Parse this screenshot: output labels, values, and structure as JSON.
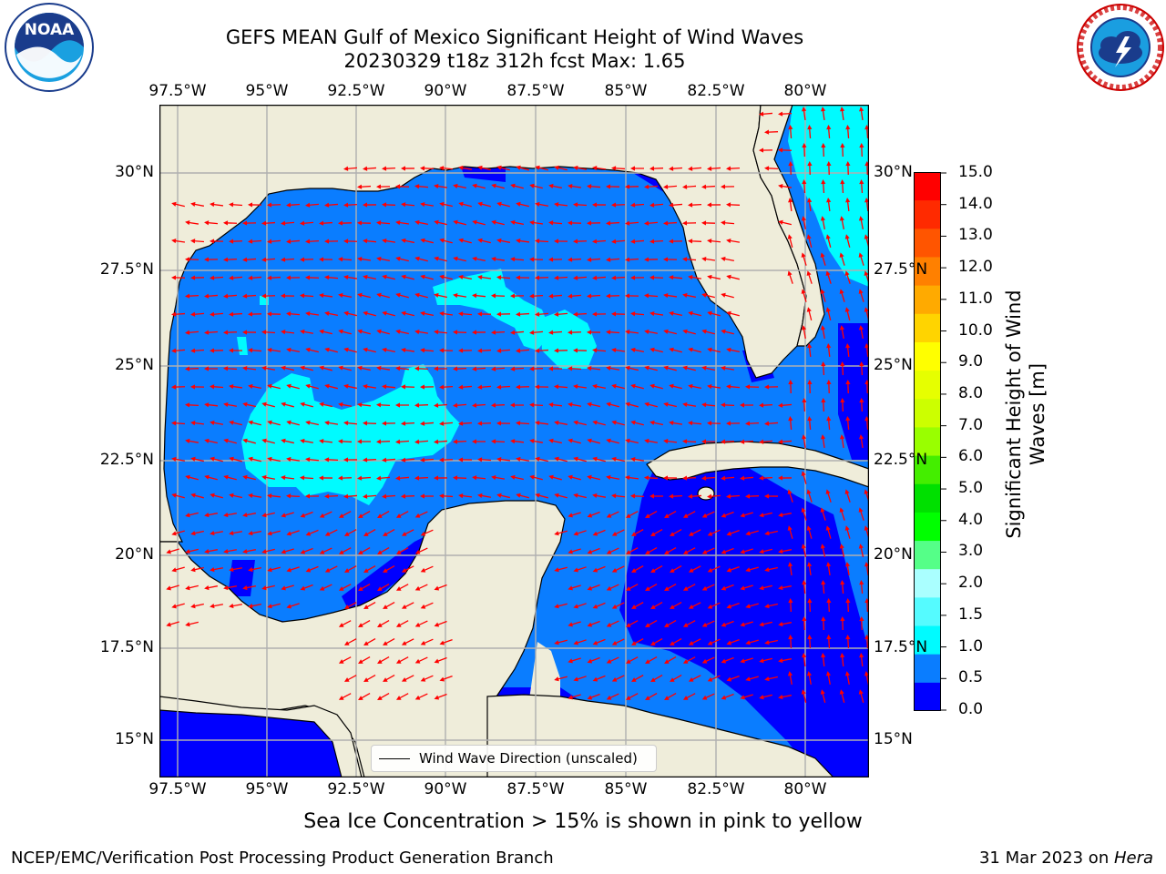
{
  "header": {
    "title": "GEFS MEAN Gulf of Mexico Significant Height of Wind Waves",
    "subtitle": "20230329 t18z 312h fcst   Max: 1.65"
  },
  "logos": {
    "left": {
      "name": "noaa-logo",
      "text": "NOAA",
      "ring_text": "NATIONAL OCEANIC AND ATMOSPHERIC ADMINISTRATION · U.S. DEPARTMENT OF COMMERCE"
    },
    "right": {
      "name": "nws-logo",
      "ring_text": "NATIONAL WEATHER SERVICE"
    }
  },
  "map": {
    "lon_labels": [
      "97.5°W",
      "95°W",
      "92.5°W",
      "90°W",
      "87.5°W",
      "85°W",
      "82.5°W",
      "80°W"
    ],
    "lat_labels_left": [
      "30°N",
      "27.5°N",
      "25°N",
      "22.5°N",
      "20°N",
      "17.5°N",
      "15°N"
    ],
    "lat_labels_right": [
      "30°N",
      "27.5°N",
      "25°N",
      "22.5°N",
      "20°N",
      "17.5°N",
      "15°N"
    ],
    "lon_range": [
      -98,
      -78.2
    ],
    "lat_range": [
      14,
      31.5
    ],
    "grid": true,
    "colors": {
      "land": "#efedda",
      "wave_0_0_5": "#0000ff",
      "wave_0_5_1_0": "#0a7dff",
      "wave_1_0_1_5": "#00fbff",
      "arrow": "#ff0000",
      "grid": "#b0b0b0"
    },
    "legend": {
      "label": "Wind Wave Direction (unscaled)"
    }
  },
  "colorbar": {
    "label_line1": "Significant Height of Wind",
    "label_line2": "Waves [m]",
    "ticks": [
      "15.0",
      "14.0",
      "13.0",
      "12.0",
      "11.0",
      "10.0",
      "9.0",
      "8.0",
      "7.0",
      "6.0",
      "5.0",
      "4.0",
      "3.0",
      "2.0",
      "1.5",
      "1.0",
      "0.5",
      "0.0"
    ],
    "colors_top_to_bottom": [
      "#ff0000",
      "#ff2a00",
      "#ff5500",
      "#ff8000",
      "#ffaa00",
      "#ffd400",
      "#ffff00",
      "#e6ff00",
      "#ccff00",
      "#99ff00",
      "#44ee00",
      "#00e000",
      "#00ff00",
      "#55ff88",
      "#aaffff",
      "#55fbff",
      "#00fbff",
      "#0a7dff",
      "#0000ff"
    ]
  },
  "note": "Sea Ice Concentration > 15% is shown in pink to yellow",
  "footer": {
    "left": "NCEP/EMC/Verification Post Processing Product Generation Branch",
    "right_prefix": "31 Mar 2023 on ",
    "right_italic": "Hera"
  }
}
